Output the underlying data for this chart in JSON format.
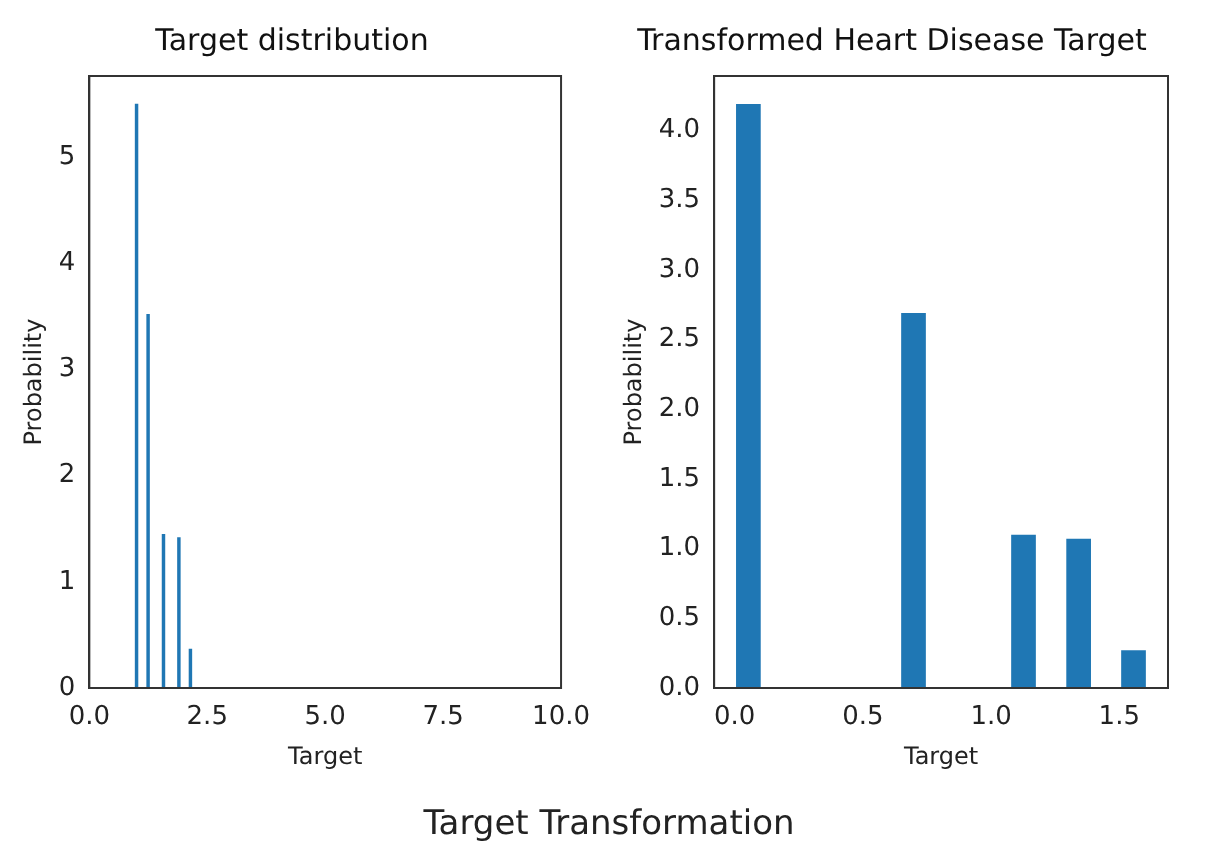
{
  "chart_data": [
    {
      "type": "histogram",
      "title": "Target distribution",
      "xlabel": "Target",
      "ylabel": "Probability",
      "bins": [
        0.96,
        1.042,
        1.123,
        1.205,
        1.286,
        1.368,
        1.45,
        1.531,
        1.613,
        1.694,
        1.776,
        1.858,
        1.939,
        2.021,
        2.102,
        2.184
      ],
      "values": [
        5.5,
        0,
        0,
        3.52,
        0,
        0,
        0,
        1.45,
        0,
        0,
        0,
        1.42,
        0,
        0,
        0.37
      ],
      "color": "#1f77b4",
      "xlim": [
        0,
        10
      ],
      "xticks": [
        {
          "value": 0,
          "label": "0.0"
        },
        {
          "value": 2.5,
          "label": "2.5"
        },
        {
          "value": 5,
          "label": "5.0"
        },
        {
          "value": 7.5,
          "label": "7.5"
        },
        {
          "value": 10,
          "label": "10.0"
        }
      ],
      "ylim": [
        0,
        5.76
      ],
      "yticks": [
        0,
        1,
        2,
        3,
        4,
        5
      ],
      "annotations": [
        "Target Transformation"
      ]
    },
    {
      "type": "histogram",
      "title": "Transformed Heart Disease Target",
      "xlabel": "Target",
      "ylabel": "Probability",
      "bins": [
        0,
        0.107,
        0.215,
        0.322,
        0.429,
        0.536,
        0.644,
        0.751,
        0.858,
        0.966,
        1.073,
        1.18,
        1.288,
        1.395,
        1.502,
        1.609
      ],
      "values": [
        4.19,
        0,
        0,
        0,
        0,
        0,
        2.69,
        0,
        0,
        0,
        1.1,
        0,
        1.07,
        0,
        0.27
      ],
      "color": "#1f77b4",
      "xlim": [
        -0.08,
        1.69
      ],
      "xticks": [
        {
          "value": 0,
          "label": "0.0"
        },
        {
          "value": 0.5,
          "label": "0.5"
        },
        {
          "value": 1,
          "label": "1.0"
        },
        {
          "value": 1.5,
          "label": "1.5"
        }
      ],
      "ylim": [
        0,
        4.39
      ],
      "yticks": [
        {
          "value": 0,
          "label": "0.0"
        },
        {
          "value": 0.5,
          "label": "0.5"
        },
        {
          "value": 1,
          "label": "1.0"
        },
        {
          "value": 1.5,
          "label": "1.5"
        },
        {
          "value": 2,
          "label": "2.0"
        },
        {
          "value": 2.5,
          "label": "2.5"
        },
        {
          "value": 3,
          "label": "3.0"
        },
        {
          "value": 3.5,
          "label": "3.5"
        },
        {
          "value": 4,
          "label": "4.0"
        }
      ]
    }
  ]
}
